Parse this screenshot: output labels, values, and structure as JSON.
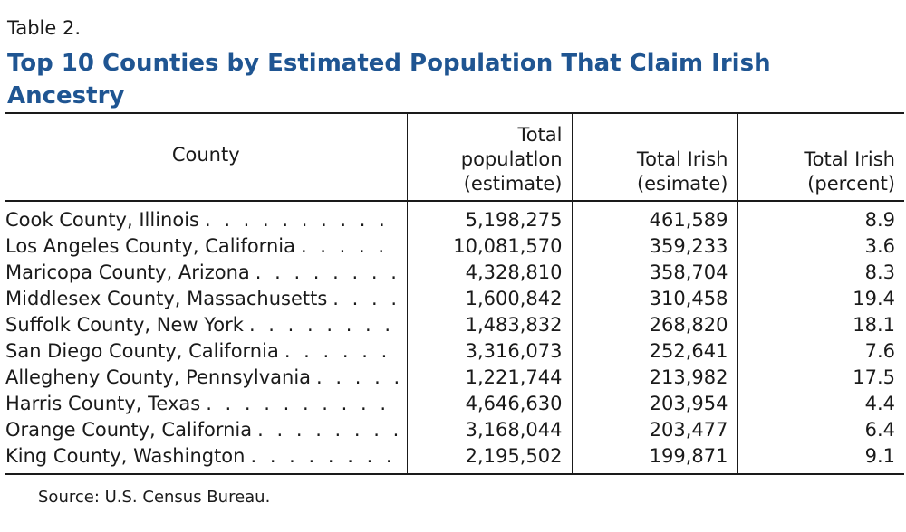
{
  "table_label": "Table 2.",
  "title": "Top 10 Counties by Estimated Population That Claim Irish Ancestry",
  "headers": {
    "county": "County",
    "total_population": [
      "Total",
      "populatlon",
      "(estimate)"
    ],
    "total_irish": [
      "Total Irish",
      "(esimate)"
    ],
    "total_irish_percent": [
      "Total Irish",
      "(percent)"
    ]
  },
  "rows": [
    {
      "county": "Cook County, Illinois",
      "population": "5,198,275",
      "irish": "461,589",
      "percent": "8.9"
    },
    {
      "county": "Los Angeles County, California",
      "population": "10,081,570",
      "irish": "359,233",
      "percent": "3.6"
    },
    {
      "county": "Maricopa County, Arizona",
      "population": "4,328,810",
      "irish": "358,704",
      "percent": "8.3"
    },
    {
      "county": "Middlesex County, Massachusetts",
      "population": "1,600,842",
      "irish": "310,458",
      "percent": "19.4"
    },
    {
      "county": "Suffolk County, New York",
      "population": "1,483,832",
      "irish": "268,820",
      "percent": "18.1"
    },
    {
      "county": "San Diego County, California",
      "population": "3,316,073",
      "irish": "252,641",
      "percent": "7.6"
    },
    {
      "county": "Allegheny County, Pennsylvania",
      "population": "1,221,744",
      "irish": "213,982",
      "percent": "17.5"
    },
    {
      "county": "Harris County, Texas",
      "population": "4,646,630",
      "irish": "203,954",
      "percent": "4.4"
    },
    {
      "county": "Orange County, California",
      "population": "3,168,044",
      "irish": "203,477",
      "percent": "6.4"
    },
    {
      "county": "King County, Washington",
      "population": "2,195,502",
      "irish": "199,871",
      "percent": "9.1"
    }
  ],
  "source": "Source: U.S. Census Bureau.",
  "colors": {
    "title": "#1f5592",
    "text": "#1a1a1a",
    "rule": "#1a1a1a"
  }
}
